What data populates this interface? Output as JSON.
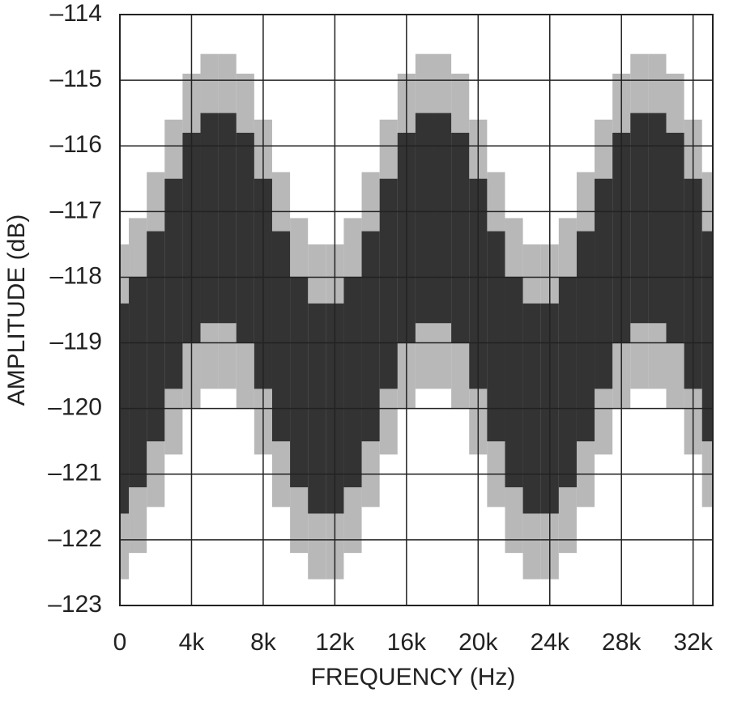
{
  "chart_data": {
    "type": "band",
    "x_label": "FREQUENCY (Hz)",
    "y_label": "AMPLITUDE (dB)",
    "x": [
      0,
      1000,
      2000,
      3000,
      4000,
      5000,
      6000,
      7000,
      8000,
      9000,
      10000,
      11000,
      12000,
      13000,
      14000,
      15000,
      16000,
      17000,
      18000,
      19000,
      20000,
      21000,
      22000,
      23000,
      24000,
      25000,
      26000,
      27000,
      28000,
      29000,
      30000,
      31000,
      32000,
      33000
    ],
    "bands": [
      {
        "color": "#b8b8b8",
        "low": [
          -122.6,
          -122.2,
          -121.5,
          -120.7,
          -120.0,
          -119.7,
          -119.7,
          -120.0,
          -120.7,
          -121.5,
          -122.2,
          -122.6,
          -122.6,
          -122.2,
          -121.5,
          -120.7,
          -120.0,
          -119.7,
          -119.7,
          -120.0,
          -120.7,
          -121.5,
          -122.2,
          -122.6,
          -122.6,
          -122.2,
          -121.5,
          -120.7,
          -120.0,
          -119.7,
          -119.7,
          -120.0,
          -120.7,
          -121.5
        ],
        "high": [
          -117.5,
          -117.1,
          -116.4,
          -115.6,
          -114.9,
          -114.6,
          -114.6,
          -114.9,
          -115.6,
          -116.4,
          -117.1,
          -117.5,
          -117.5,
          -117.1,
          -116.4,
          -115.6,
          -114.9,
          -114.6,
          -114.6,
          -114.9,
          -115.6,
          -116.4,
          -117.1,
          -117.5,
          -117.5,
          -117.1,
          -116.4,
          -115.6,
          -114.9,
          -114.6,
          -114.6,
          -114.9,
          -115.6,
          -116.4
        ]
      },
      {
        "color": "#333333",
        "low": [
          -121.6,
          -121.2,
          -120.5,
          -119.7,
          -119.0,
          -118.7,
          -118.7,
          -119.0,
          -119.7,
          -120.5,
          -121.2,
          -121.6,
          -121.6,
          -121.2,
          -120.5,
          -119.7,
          -119.0,
          -118.7,
          -118.7,
          -119.0,
          -119.7,
          -120.5,
          -121.2,
          -121.6,
          -121.6,
          -121.2,
          -120.5,
          -119.7,
          -119.0,
          -118.7,
          -118.7,
          -119.0,
          -119.7,
          -120.5
        ],
        "high": [
          -118.4,
          -118.0,
          -117.3,
          -116.5,
          -115.8,
          -115.5,
          -115.5,
          -115.8,
          -116.5,
          -117.3,
          -118.0,
          -118.4,
          -118.4,
          -118.0,
          -117.3,
          -116.5,
          -115.8,
          -115.5,
          -115.5,
          -115.8,
          -116.5,
          -117.3,
          -118.0,
          -118.4,
          -118.4,
          -118.0,
          -117.3,
          -116.5,
          -115.8,
          -115.5,
          -115.5,
          -115.8,
          -116.5,
          -117.3
        ]
      }
    ],
    "xlim": [
      0,
      33100
    ],
    "ylim": [
      -123,
      -114
    ],
    "xticks": [
      0,
      {
        "value": 4000,
        "label": "4k"
      },
      {
        "value": 8000,
        "label": "8k"
      },
      {
        "value": 12000,
        "label": "12k"
      },
      {
        "value": 16000,
        "label": "16k"
      },
      {
        "value": 20000,
        "label": "20k"
      },
      {
        "value": 24000,
        "label": "24k"
      },
      {
        "value": 28000,
        "label": "28k"
      },
      {
        "value": 32000,
        "label": "32k"
      }
    ],
    "yticks": [
      {
        "value": -123,
        "label": "–123"
      },
      {
        "value": -122,
        "label": "–122"
      },
      {
        "value": -121,
        "label": "–121"
      },
      {
        "value": -120,
        "label": "–120"
      },
      {
        "value": -119,
        "label": "–119"
      },
      {
        "value": -118,
        "label": "–118"
      },
      {
        "value": -117,
        "label": "–117"
      },
      {
        "value": -116,
        "label": "–116"
      },
      {
        "value": -115,
        "label": "–115"
      },
      {
        "value": -114,
        "label": "–114"
      }
    ],
    "grid": true
  }
}
